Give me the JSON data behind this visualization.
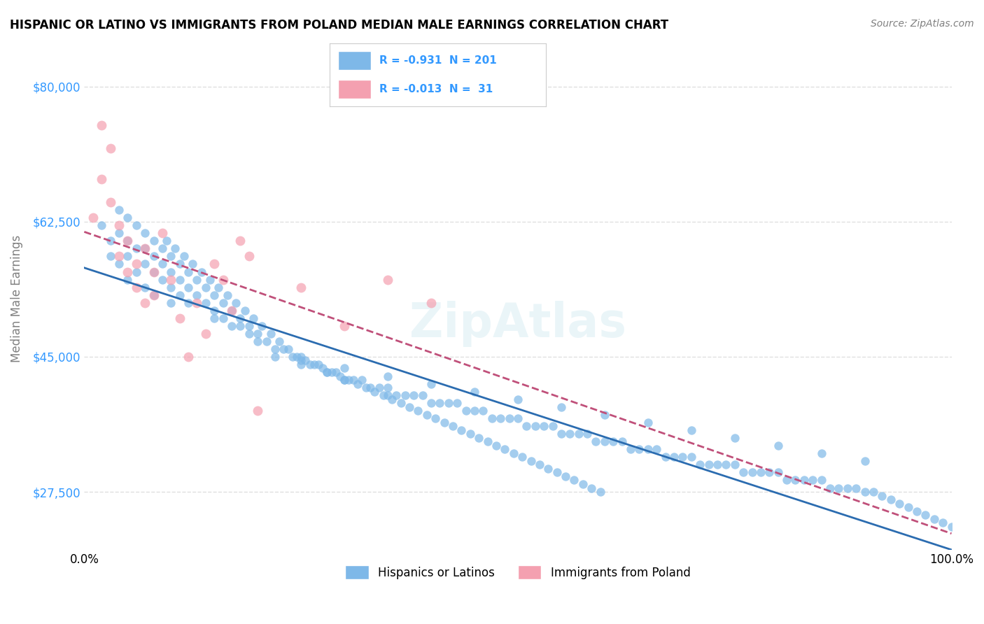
{
  "title": "HISPANIC OR LATINO VS IMMIGRANTS FROM POLAND MEDIAN MALE EARNINGS CORRELATION CHART",
  "source": "Source: ZipAtlas.com",
  "xlabel": "",
  "ylabel": "Median Male Earnings",
  "xlim": [
    0.0,
    1.0
  ],
  "ylim": [
    20000,
    85000
  ],
  "yticks": [
    27500,
    45000,
    62500,
    80000
  ],
  "ytick_labels": [
    "$27,500",
    "$45,000",
    "$62,500",
    "$80,000"
  ],
  "xtick_labels": [
    "0.0%",
    "100.0%"
  ],
  "legend_blue_r": "-0.931",
  "legend_blue_n": "201",
  "legend_pink_r": "-0.013",
  "legend_pink_n": " 31",
  "blue_color": "#7eb8e8",
  "blue_line_color": "#2b6cb0",
  "pink_color": "#f4a0b0",
  "pink_line_color": "#c0507a",
  "watermark": "ZipAtlas",
  "background_color": "#ffffff",
  "grid_color": "#e0e0e0",
  "blue_scatter_x": [
    0.02,
    0.03,
    0.03,
    0.04,
    0.04,
    0.04,
    0.05,
    0.05,
    0.05,
    0.05,
    0.06,
    0.06,
    0.06,
    0.07,
    0.07,
    0.07,
    0.07,
    0.08,
    0.08,
    0.08,
    0.08,
    0.09,
    0.09,
    0.09,
    0.1,
    0.1,
    0.1,
    0.1,
    0.11,
    0.11,
    0.11,
    0.12,
    0.12,
    0.12,
    0.13,
    0.13,
    0.14,
    0.14,
    0.15,
    0.15,
    0.15,
    0.16,
    0.16,
    0.17,
    0.17,
    0.18,
    0.18,
    0.19,
    0.19,
    0.2,
    0.2,
    0.21,
    0.22,
    0.22,
    0.23,
    0.24,
    0.25,
    0.25,
    0.26,
    0.27,
    0.28,
    0.28,
    0.29,
    0.3,
    0.3,
    0.31,
    0.32,
    0.33,
    0.34,
    0.35,
    0.35,
    0.36,
    0.37,
    0.38,
    0.39,
    0.4,
    0.41,
    0.42,
    0.43,
    0.44,
    0.45,
    0.46,
    0.47,
    0.48,
    0.49,
    0.5,
    0.51,
    0.52,
    0.53,
    0.54,
    0.55,
    0.56,
    0.57,
    0.58,
    0.59,
    0.6,
    0.61,
    0.62,
    0.63,
    0.64,
    0.65,
    0.66,
    0.67,
    0.68,
    0.69,
    0.7,
    0.71,
    0.72,
    0.73,
    0.74,
    0.75,
    0.76,
    0.77,
    0.78,
    0.79,
    0.8,
    0.81,
    0.82,
    0.83,
    0.84,
    0.85,
    0.86,
    0.87,
    0.88,
    0.89,
    0.9,
    0.91,
    0.92,
    0.93,
    0.94,
    0.95,
    0.96,
    0.97,
    0.98,
    0.99,
    1.0,
    0.25,
    0.3,
    0.35,
    0.4,
    0.45,
    0.5,
    0.55,
    0.6,
    0.65,
    0.7,
    0.75,
    0.8,
    0.85,
    0.9,
    0.095,
    0.105,
    0.115,
    0.125,
    0.135,
    0.145,
    0.155,
    0.165,
    0.175,
    0.185,
    0.195,
    0.205,
    0.215,
    0.225,
    0.235,
    0.245,
    0.255,
    0.265,
    0.275,
    0.285,
    0.295,
    0.305,
    0.315,
    0.325,
    0.335,
    0.345,
    0.355,
    0.365,
    0.375,
    0.385,
    0.395,
    0.405,
    0.415,
    0.425,
    0.435,
    0.445,
    0.455,
    0.465,
    0.475,
    0.485,
    0.495,
    0.505,
    0.515,
    0.525,
    0.535,
    0.545,
    0.555,
    0.565,
    0.575,
    0.585,
    0.595
  ],
  "blue_scatter_y": [
    62000,
    60000,
    58000,
    64000,
    61000,
    57000,
    63000,
    60000,
    58000,
    55000,
    62000,
    59000,
    56000,
    61000,
    59000,
    57000,
    54000,
    60000,
    58000,
    56000,
    53000,
    59000,
    57000,
    55000,
    58000,
    56000,
    54000,
    52000,
    57000,
    55000,
    53000,
    56000,
    54000,
    52000,
    55000,
    53000,
    54000,
    52000,
    53000,
    51000,
    50000,
    52000,
    50000,
    51000,
    49000,
    50000,
    49000,
    49000,
    48000,
    48000,
    47000,
    47000,
    46000,
    45000,
    46000,
    45000,
    45000,
    44000,
    44000,
    44000,
    43000,
    43000,
    43000,
    42000,
    42000,
    42000,
    42000,
    41000,
    41000,
    41000,
    40000,
    40000,
    40000,
    40000,
    40000,
    39000,
    39000,
    39000,
    39000,
    38000,
    38000,
    38000,
    37000,
    37000,
    37000,
    37000,
    36000,
    36000,
    36000,
    36000,
    35000,
    35000,
    35000,
    35000,
    34000,
    34000,
    34000,
    34000,
    33000,
    33000,
    33000,
    33000,
    32000,
    32000,
    32000,
    32000,
    31000,
    31000,
    31000,
    31000,
    31000,
    30000,
    30000,
    30000,
    30000,
    30000,
    29000,
    29000,
    29000,
    29000,
    29000,
    28000,
    28000,
    28000,
    28000,
    27500,
    27500,
    27000,
    26500,
    26000,
    25500,
    25000,
    24500,
    24000,
    23500,
    23000,
    44500,
    43500,
    42500,
    41500,
    40500,
    39500,
    38500,
    37500,
    36500,
    35500,
    34500,
    33500,
    32500,
    31500,
    60000,
    59000,
    58000,
    57000,
    56000,
    55000,
    54000,
    53000,
    52000,
    51000,
    50000,
    49000,
    48000,
    47000,
    46000,
    45000,
    44500,
    44000,
    43500,
    43000,
    42500,
    42000,
    41500,
    41000,
    40500,
    40000,
    39500,
    39000,
    38500,
    38000,
    37500,
    37000,
    36500,
    36000,
    35500,
    35000,
    34500,
    34000,
    33500,
    33000,
    32500,
    32000,
    31500,
    31000,
    30500,
    30000,
    29500,
    29000,
    28500,
    28000,
    27500
  ],
  "pink_scatter_x": [
    0.01,
    0.02,
    0.02,
    0.03,
    0.03,
    0.04,
    0.04,
    0.05,
    0.05,
    0.06,
    0.06,
    0.07,
    0.07,
    0.08,
    0.08,
    0.09,
    0.1,
    0.11,
    0.12,
    0.13,
    0.14,
    0.15,
    0.16,
    0.17,
    0.18,
    0.19,
    0.2,
    0.25,
    0.3,
    0.35,
    0.4
  ],
  "pink_scatter_y": [
    63000,
    75000,
    68000,
    72000,
    65000,
    62000,
    58000,
    60000,
    56000,
    57000,
    54000,
    59000,
    52000,
    56000,
    53000,
    61000,
    55000,
    50000,
    45000,
    52000,
    48000,
    57000,
    55000,
    51000,
    60000,
    58000,
    38000,
    54000,
    49000,
    55000,
    52000
  ]
}
